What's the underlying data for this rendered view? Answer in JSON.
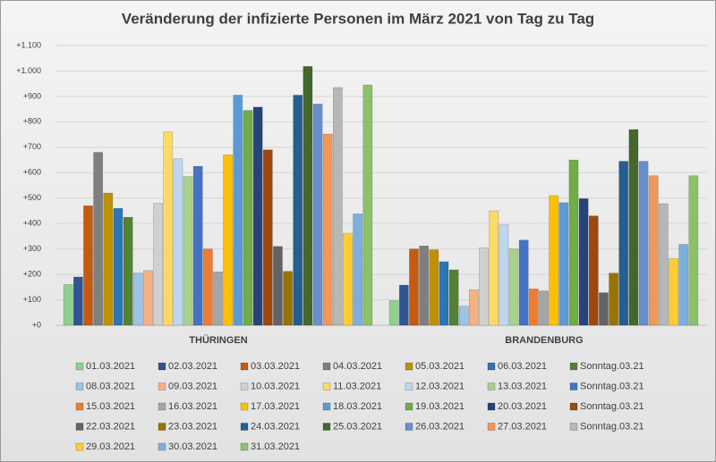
{
  "chart_data": {
    "type": "bar",
    "title": "Veränderung der infizierte Personen im März 2021 von Tag zu Tag",
    "categories": [
      "THÜRINGEN",
      "BRANDENBURG"
    ],
    "ylim": [
      0,
      1100
    ],
    "yticks": [
      {
        "value": 0,
        "label": "+0"
      },
      {
        "value": 100,
        "label": "+100"
      },
      {
        "value": 200,
        "label": "+200"
      },
      {
        "value": 300,
        "label": "+300"
      },
      {
        "value": 400,
        "label": "+400"
      },
      {
        "value": 500,
        "label": "+500"
      },
      {
        "value": 600,
        "label": "+600"
      },
      {
        "value": 700,
        "label": "+700"
      },
      {
        "value": 800,
        "label": "+800"
      },
      {
        "value": 900,
        "label": "+900"
      },
      {
        "value": 1000,
        "label": "+1.000"
      },
      {
        "value": 1100,
        "label": "+1.100"
      }
    ],
    "grid": true,
    "legend": "bottom",
    "series": [
      {
        "name": "01.03.2021",
        "color": "#8fd18f",
        "values": [
          160,
          97
        ]
      },
      {
        "name": "02.03.2021",
        "color": "#2f5597",
        "values": [
          190,
          158
        ]
      },
      {
        "name": "03.03.2021",
        "color": "#c55a11",
        "values": [
          470,
          300
        ]
      },
      {
        "name": "04.03.2021",
        "color": "#7f7f7f",
        "values": [
          680,
          312
        ]
      },
      {
        "name": "05.03.2021",
        "color": "#bf9000",
        "values": [
          520,
          297
        ]
      },
      {
        "name": "06.03.2021",
        "color": "#2e75b6",
        "values": [
          460,
          250
        ]
      },
      {
        "name": "Sonntag.03.21",
        "color": "#548235",
        "values": [
          425,
          218
        ]
      },
      {
        "name": "08.03.2021",
        "color": "#9dc3e6",
        "values": [
          205,
          75
        ]
      },
      {
        "name": "09.03.2021",
        "color": "#f4b183",
        "values": [
          215,
          140
        ]
      },
      {
        "name": "10.03.2021",
        "color": "#d0d0d0",
        "values": [
          480,
          305
        ]
      },
      {
        "name": "11.03.2021",
        "color": "#ffd966",
        "values": [
          760,
          450
        ]
      },
      {
        "name": "12.03.2021",
        "color": "#bdd7ee",
        "values": [
          655,
          395
        ]
      },
      {
        "name": "13.03.2021",
        "color": "#a9d18e",
        "values": [
          585,
          300
        ]
      },
      {
        "name": "Sonntag.03.21",
        "color": "#4472c4",
        "values": [
          625,
          335
        ]
      },
      {
        "name": "15.03.2021",
        "color": "#ed7d31",
        "values": [
          300,
          143
        ]
      },
      {
        "name": "16.03.2021",
        "color": "#a5a5a5",
        "values": [
          210,
          135
        ]
      },
      {
        "name": "17.03.2021",
        "color": "#ffc000",
        "values": [
          670,
          510
        ]
      },
      {
        "name": "18.03.2021",
        "color": "#5b9bd5",
        "values": [
          905,
          482
        ]
      },
      {
        "name": "19.03.2021",
        "color": "#70ad47",
        "values": [
          845,
          650
        ]
      },
      {
        "name": "20.03.2021",
        "color": "#264478",
        "values": [
          858,
          498
        ]
      },
      {
        "name": "Sonntag.03.21",
        "color": "#9e480e",
        "values": [
          690,
          430
        ]
      },
      {
        "name": "22.03.2021",
        "color": "#636363",
        "values": [
          310,
          128
        ]
      },
      {
        "name": "23.03.2021",
        "color": "#997300",
        "values": [
          212,
          205
        ]
      },
      {
        "name": "24.03.2021",
        "color": "#255e91",
        "values": [
          905,
          645
        ]
      },
      {
        "name": "25.03.2021",
        "color": "#43682b",
        "values": [
          1018,
          770
        ]
      },
      {
        "name": "26.03.2021",
        "color": "#698ed0",
        "values": [
          870,
          645
        ]
      },
      {
        "name": "27.03.2021",
        "color": "#f1975a",
        "values": [
          752,
          588
        ]
      },
      {
        "name": "Sonntag.03.21",
        "color": "#b7b7b7",
        "values": [
          935,
          478
        ]
      },
      {
        "name": "29.03.2021",
        "color": "#ffcd33",
        "values": [
          362,
          262
        ]
      },
      {
        "name": "30.03.2021",
        "color": "#7cafdd",
        "values": [
          438,
          318
        ]
      },
      {
        "name": "31.03.2021",
        "color": "#8cc168",
        "values": [
          945,
          588
        ]
      }
    ]
  }
}
